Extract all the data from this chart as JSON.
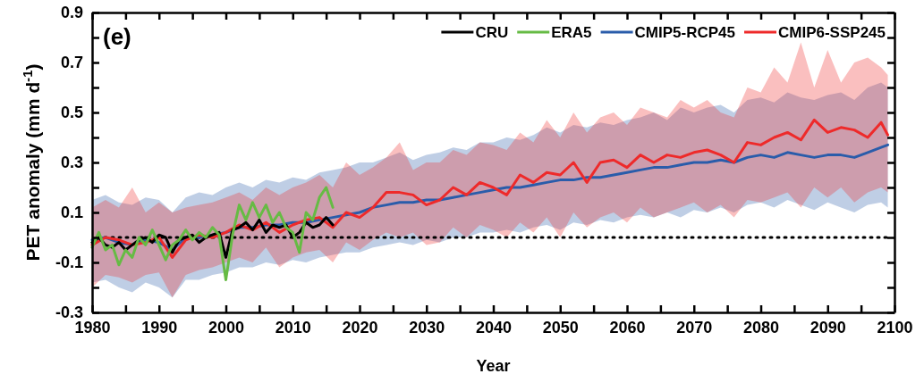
{
  "chart_data": {
    "type": "line",
    "xlabel": "Year",
    "ylabel": "PET anomaly (mm d$^{-1}$)",
    "annotations": [
      "(e)"
    ],
    "xlim": [
      1980,
      2100
    ],
    "xticks": [
      1980,
      {
        "value": 1985,
        "label": null
      },
      1990,
      {
        "value": 1995,
        "label": null
      },
      2000,
      {
        "value": 2005,
        "label": null
      },
      2010,
      {
        "value": 2015,
        "label": null
      },
      2020,
      {
        "value": 2025,
        "label": null
      },
      2030,
      {
        "value": 2035,
        "label": null
      },
      2040,
      {
        "value": 2045,
        "label": null
      },
      2050,
      {
        "value": 2055,
        "label": null
      },
      2060,
      {
        "value": 2065,
        "label": null
      },
      2070,
      {
        "value": 2075,
        "label": null
      },
      2080,
      {
        "value": 2085,
        "label": null
      },
      2090,
      {
        "value": 2095,
        "label": null
      },
      2100
    ],
    "ylim": [
      -0.3,
      0.9
    ],
    "yticks": [
      -0.3,
      {
        "value": -0.2,
        "label": null
      },
      -0.1,
      {
        "value": 0,
        "label": null
      },
      0.1,
      {
        "value": 0.2,
        "label": null
      },
      0.3,
      {
        "value": 0.4,
        "label": null
      },
      0.5,
      {
        "value": 0.6,
        "label": null
      },
      0.7,
      {
        "value": 0.8,
        "label": null
      },
      0.9
    ],
    "grid": false,
    "legend": "top right",
    "line_style": "solid",
    "marker": "none",
    "ref_lines": [
      {
        "axis": "y",
        "value": 0,
        "color": "#000000",
        "line_style": "dotted"
      }
    ],
    "series": [
      {
        "name": "CMIP5-RCP45",
        "color": "#2a5caa",
        "x": [
          1980,
          1982,
          1984,
          1986,
          1988,
          1990,
          1992,
          1994,
          1996,
          1998,
          2000,
          2002,
          2004,
          2006,
          2008,
          2010,
          2012,
          2014,
          2016,
          2018,
          2020,
          2022,
          2024,
          2026,
          2028,
          2030,
          2032,
          2034,
          2036,
          2038,
          2040,
          2042,
          2044,
          2046,
          2048,
          2050,
          2052,
          2054,
          2056,
          2058,
          2060,
          2062,
          2064,
          2066,
          2068,
          2070,
          2072,
          2074,
          2076,
          2078,
          2080,
          2082,
          2084,
          2086,
          2088,
          2090,
          2092,
          2094,
          2096,
          2098,
          2099
        ],
        "values": [
          -0.01,
          0.0,
          -0.02,
          -0.03,
          -0.01,
          -0.02,
          -0.05,
          0.0,
          0.0,
          0.01,
          0.02,
          0.04,
          0.04,
          0.05,
          0.05,
          0.06,
          0.06,
          0.07,
          0.08,
          0.09,
          0.1,
          0.12,
          0.13,
          0.14,
          0.14,
          0.15,
          0.15,
          0.16,
          0.17,
          0.18,
          0.19,
          0.2,
          0.2,
          0.21,
          0.22,
          0.23,
          0.23,
          0.24,
          0.24,
          0.25,
          0.26,
          0.27,
          0.28,
          0.28,
          0.29,
          0.3,
          0.3,
          0.31,
          0.3,
          0.32,
          0.33,
          0.32,
          0.34,
          0.33,
          0.32,
          0.33,
          0.33,
          0.32,
          0.34,
          0.36,
          0.37
        ],
        "upper": [
          0.15,
          0.17,
          0.14,
          0.13,
          0.16,
          0.15,
          0.1,
          0.16,
          0.18,
          0.17,
          0.2,
          0.22,
          0.2,
          0.23,
          0.22,
          0.24,
          0.23,
          0.26,
          0.27,
          0.28,
          0.3,
          0.3,
          0.32,
          0.34,
          0.31,
          0.33,
          0.34,
          0.36,
          0.35,
          0.38,
          0.38,
          0.4,
          0.39,
          0.41,
          0.44,
          0.42,
          0.45,
          0.44,
          0.46,
          0.45,
          0.47,
          0.48,
          0.5,
          0.47,
          0.52,
          0.5,
          0.52,
          0.53,
          0.5,
          0.55,
          0.56,
          0.54,
          0.58,
          0.56,
          0.55,
          0.57,
          0.58,
          0.55,
          0.6,
          0.62,
          0.6
        ],
        "lower": [
          -0.18,
          -0.17,
          -0.2,
          -0.22,
          -0.18,
          -0.2,
          -0.24,
          -0.17,
          -0.17,
          -0.15,
          -0.14,
          -0.12,
          -0.12,
          -0.1,
          -0.11,
          -0.09,
          -0.1,
          -0.08,
          -0.07,
          -0.06,
          -0.06,
          -0.04,
          -0.03,
          -0.02,
          -0.03,
          -0.01,
          -0.02,
          0.0,
          0.0,
          0.02,
          0.02,
          0.03,
          0.02,
          0.04,
          0.05,
          0.03,
          0.06,
          0.05,
          0.07,
          0.06,
          0.08,
          0.09,
          0.08,
          0.1,
          0.08,
          0.11,
          0.1,
          0.12,
          0.1,
          0.13,
          0.14,
          0.12,
          0.15,
          0.13,
          0.11,
          0.14,
          0.12,
          0.1,
          0.13,
          0.14,
          0.12
        ]
      },
      {
        "name": "CMIP6-SSP245",
        "color": "#ee2a2a",
        "x": [
          1980,
          1982,
          1984,
          1986,
          1988,
          1990,
          1992,
          1994,
          1996,
          1998,
          2000,
          2002,
          2004,
          2006,
          2008,
          2010,
          2012,
          2014,
          2016,
          2018,
          2020,
          2022,
          2024,
          2026,
          2028,
          2030,
          2032,
          2034,
          2036,
          2038,
          2040,
          2042,
          2044,
          2046,
          2048,
          2050,
          2052,
          2054,
          2056,
          2058,
          2060,
          2062,
          2064,
          2066,
          2068,
          2070,
          2072,
          2074,
          2076,
          2078,
          2080,
          2082,
          2084,
          2086,
          2088,
          2090,
          2092,
          2094,
          2096,
          2098,
          2099
        ],
        "values": [
          -0.03,
          0.0,
          -0.01,
          -0.03,
          -0.02,
          0.0,
          -0.08,
          -0.01,
          0.01,
          0.0,
          0.02,
          0.05,
          0.03,
          0.06,
          0.02,
          0.05,
          0.07,
          0.08,
          0.04,
          0.1,
          0.08,
          0.12,
          0.18,
          0.18,
          0.17,
          0.13,
          0.15,
          0.2,
          0.17,
          0.22,
          0.2,
          0.17,
          0.25,
          0.22,
          0.26,
          0.25,
          0.3,
          0.22,
          0.3,
          0.31,
          0.28,
          0.33,
          0.3,
          0.33,
          0.32,
          0.34,
          0.35,
          0.33,
          0.3,
          0.38,
          0.37,
          0.4,
          0.42,
          0.39,
          0.47,
          0.42,
          0.44,
          0.43,
          0.4,
          0.46,
          0.41
        ],
        "upper": [
          0.12,
          0.15,
          0.12,
          0.2,
          0.1,
          0.14,
          0.1,
          0.12,
          0.13,
          0.14,
          0.16,
          0.18,
          0.15,
          0.2,
          0.17,
          0.2,
          0.22,
          0.25,
          0.2,
          0.3,
          0.25,
          0.28,
          0.32,
          0.38,
          0.27,
          0.3,
          0.3,
          0.35,
          0.33,
          0.38,
          0.37,
          0.35,
          0.42,
          0.38,
          0.47,
          0.4,
          0.5,
          0.42,
          0.48,
          0.5,
          0.45,
          0.52,
          0.5,
          0.48,
          0.55,
          0.52,
          0.55,
          0.5,
          0.48,
          0.6,
          0.58,
          0.68,
          0.62,
          0.78,
          0.6,
          0.75,
          0.62,
          0.7,
          0.72,
          0.68,
          0.65
        ],
        "lower": [
          -0.2,
          -0.15,
          -0.16,
          -0.18,
          -0.15,
          -0.14,
          -0.24,
          -0.15,
          -0.13,
          -0.12,
          -0.1,
          -0.08,
          -0.1,
          -0.04,
          -0.12,
          -0.08,
          -0.06,
          -0.05,
          -0.1,
          -0.02,
          -0.05,
          -0.01,
          0.02,
          0.0,
          0.02,
          -0.03,
          -0.02,
          0.04,
          0.0,
          0.05,
          0.03,
          0.0,
          0.06,
          0.02,
          0.08,
          0.0,
          0.1,
          0.04,
          0.08,
          0.1,
          0.06,
          0.12,
          0.08,
          0.1,
          0.12,
          0.14,
          0.1,
          0.13,
          0.08,
          0.15,
          0.14,
          0.16,
          0.18,
          0.12,
          0.2,
          0.16,
          0.2,
          0.14,
          0.18,
          0.2,
          0.18
        ]
      },
      {
        "name": "CRU",
        "color": "#000000",
        "x": [
          1980,
          1981,
          1982,
          1983,
          1984,
          1985,
          1986,
          1987,
          1988,
          1989,
          1990,
          1991,
          1992,
          1993,
          1994,
          1995,
          1996,
          1997,
          1998,
          1999,
          2000,
          2001,
          2002,
          2003,
          2004,
          2005,
          2006,
          2007,
          2008,
          2009,
          2010,
          2011,
          2012,
          2013,
          2014,
          2015,
          2016
        ],
        "values": [
          -0.02,
          0.0,
          -0.03,
          -0.04,
          -0.02,
          -0.05,
          -0.03,
          -0.01,
          0.0,
          -0.02,
          0.01,
          0.0,
          -0.06,
          -0.01,
          0.0,
          0.01,
          -0.02,
          0.0,
          0.01,
          0.02,
          -0.08,
          0.03,
          0.04,
          0.06,
          0.03,
          0.07,
          0.02,
          0.05,
          0.04,
          0.05,
          0.0,
          0.02,
          0.06,
          0.04,
          0.05,
          0.08,
          0.05
        ]
      },
      {
        "name": "ERA5",
        "color": "#66bb44",
        "x": [
          1980,
          1981,
          1982,
          1983,
          1984,
          1985,
          1986,
          1987,
          1988,
          1989,
          1990,
          1991,
          1992,
          1993,
          1994,
          1995,
          1996,
          1997,
          1998,
          1999,
          2000,
          2001,
          2002,
          2003,
          2004,
          2005,
          2006,
          2007,
          2008,
          2009,
          2010,
          2011,
          2012,
          2013,
          2014,
          2015,
          2016
        ],
        "values": [
          -0.04,
          0.02,
          -0.05,
          -0.03,
          -0.11,
          -0.05,
          -0.08,
          0.0,
          -0.03,
          0.03,
          -0.03,
          -0.09,
          -0.03,
          -0.01,
          0.03,
          -0.01,
          0.02,
          0.0,
          0.04,
          0.01,
          -0.17,
          0.01,
          0.13,
          0.07,
          0.14,
          0.08,
          0.13,
          0.06,
          0.1,
          0.04,
          0.02,
          -0.06,
          0.1,
          0.07,
          0.16,
          0.2,
          0.12
        ]
      }
    ]
  }
}
